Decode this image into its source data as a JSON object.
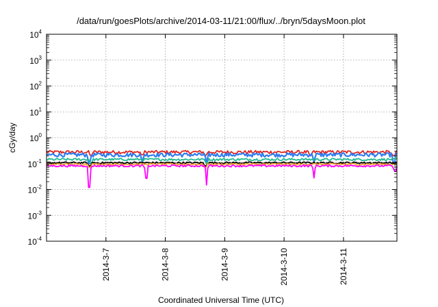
{
  "chart_data": {
    "type": "line",
    "title": "/data/run/goesPlots/archive/2014-03-11/21:00/flux/../bryn/5daysMoon.plot",
    "xlabel": "Coordinated Universal Time (UTC)",
    "ylabel": "cGy/day",
    "x_range_days": [
      6.0,
      11.9
    ],
    "xticks": [
      {
        "day": 7,
        "label": "2014-3-7"
      },
      {
        "day": 8,
        "label": "2014-3-8"
      },
      {
        "day": 9,
        "label": "2014-3-9"
      },
      {
        "day": 10,
        "label": "2014-3-10"
      },
      {
        "day": 11,
        "label": "2014-3-11"
      }
    ],
    "yscale": "log",
    "ylim": [
      0.0001,
      10000
    ],
    "yticks": [
      {
        "base": "10",
        "exp": "4"
      },
      {
        "base": "10",
        "exp": "3"
      },
      {
        "base": "10",
        "exp": "2"
      },
      {
        "base": "10",
        "exp": "1"
      },
      {
        "base": "10",
        "exp": "0"
      },
      {
        "base": "10",
        "exp": "-1"
      },
      {
        "base": "10",
        "exp": "-2"
      },
      {
        "base": "10",
        "exp": "-3"
      },
      {
        "base": "10",
        "exp": "-4"
      }
    ],
    "grid": true,
    "legend": "none",
    "series": [
      {
        "color": "#e0241f",
        "baseline": 0.28,
        "noise": 0.06,
        "dips": [
          [
            6.75,
            0.2
          ],
          [
            7.62,
            0.22
          ],
          [
            8.68,
            0.2
          ],
          [
            10.45,
            0.2
          ],
          [
            11.85,
            0.2
          ]
        ]
      },
      {
        "color": "#2f7df0",
        "baseline": 0.22,
        "noise": 0.07,
        "dips": [
          [
            6.72,
            0.1
          ],
          [
            7.62,
            0.11
          ],
          [
            8.7,
            0.1
          ],
          [
            10.5,
            0.12
          ],
          [
            11.85,
            0.1
          ]
        ]
      },
      {
        "color": "#20b890",
        "baseline": 0.145,
        "noise": 0.04,
        "dips": [
          [
            6.75,
            0.1
          ],
          [
            8.7,
            0.1
          ]
        ]
      },
      {
        "color": "#000000",
        "baseline": 0.108,
        "noise": 0.03,
        "dips": [
          [
            6.73,
            0.08
          ],
          [
            8.68,
            0.08
          ]
        ]
      },
      {
        "color": "#f0a030",
        "baseline": 0.095,
        "noise": 0.03,
        "dips": [
          [
            6.73,
            0.07
          ],
          [
            8.68,
            0.07
          ]
        ]
      },
      {
        "color": "#ff00ff",
        "baseline": 0.082,
        "noise": 0.035,
        "dips": [
          [
            6.72,
            0.012
          ],
          [
            7.68,
            0.027
          ],
          [
            8.7,
            0.015
          ],
          [
            10.5,
            0.028
          ],
          [
            11.87,
            0.05
          ]
        ]
      }
    ]
  }
}
